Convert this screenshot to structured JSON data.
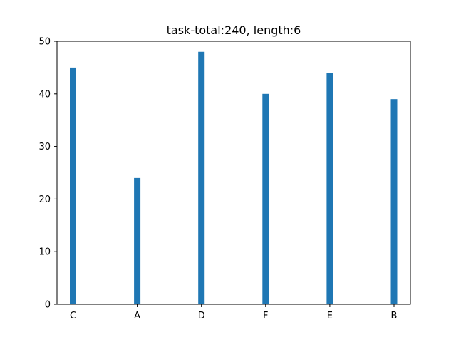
{
  "chart_data": {
    "type": "bar",
    "title": "task-total:240, length:6",
    "xlabel": "",
    "ylabel": "",
    "categories": [
      "C",
      "A",
      "D",
      "F",
      "E",
      "B"
    ],
    "values": [
      45,
      24,
      48,
      40,
      44,
      39
    ],
    "ylim": [
      0,
      50
    ],
    "yticks": [
      0,
      10,
      20,
      30,
      40,
      50
    ],
    "grid": false,
    "legend": "none",
    "bar_color": "#1f77b4"
  }
}
